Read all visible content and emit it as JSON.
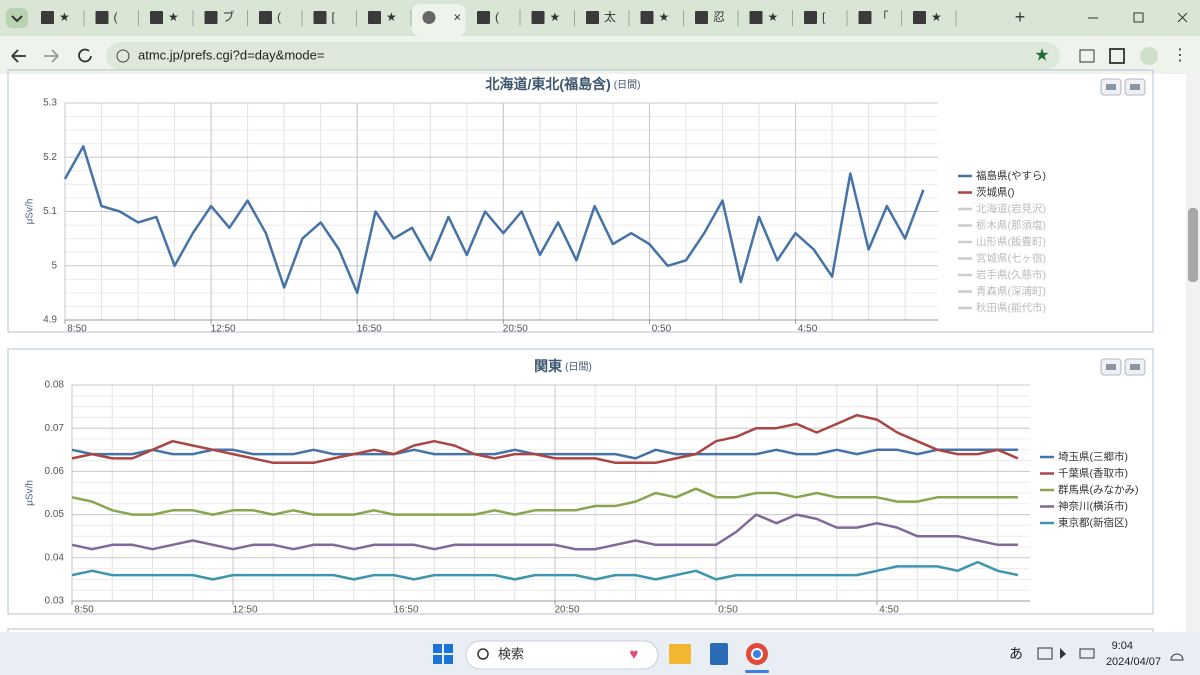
{
  "browser": {
    "tabs": [
      "★",
      "(",
      "★",
      "ブ",
      "(",
      "[",
      "★",
      "",
      "(",
      "★",
      "太",
      "★",
      "忍",
      "★",
      "[",
      "「",
      "★"
    ],
    "active_tab": 7,
    "url": "atmc.jp/prefs.cgi?d=day&mode="
  },
  "chart_data": [
    {
      "type": "line",
      "title": "北海道/東北(福島含)",
      "subtitle": "(日間)",
      "y_label": "μSv/h",
      "x": [
        0,
        0.5,
        1,
        1.5,
        2,
        2.5,
        3,
        3.5,
        4,
        4.5,
        5,
        5.5,
        6,
        6.5,
        7,
        7.5,
        8,
        8.5,
        9,
        9.5,
        10,
        10.5,
        11,
        11.5,
        12,
        12.5,
        13,
        13.5,
        14,
        14.5,
        15,
        15.5,
        16,
        16.5,
        17,
        17.5,
        18,
        18.5,
        19,
        19.5,
        20,
        20.5,
        21,
        21.5,
        22,
        22.5,
        23,
        23.5
      ],
      "xlim": [
        0,
        23.9
      ],
      "xticks": [
        {
          "value": 0,
          "label": "8:50"
        },
        {
          "value": 4,
          "label": "12:50"
        },
        {
          "value": 8,
          "label": "16:50"
        },
        {
          "value": 12,
          "label": "20:50"
        },
        {
          "value": 16,
          "label": "0:50"
        },
        {
          "value": 20,
          "label": "4:50"
        }
      ],
      "ylim": [
        4.9,
        5.3
      ],
      "yticks": [
        4.9,
        5,
        5.1,
        5.2,
        5.3
      ],
      "grid": true,
      "series": [
        {
          "name": "福島県(やすら)",
          "color": "#4572a7",
          "values": [
            5.16,
            5.22,
            5.11,
            5.1,
            5.08,
            5.09,
            5.0,
            5.06,
            5.11,
            5.07,
            5.12,
            5.06,
            4.96,
            5.05,
            5.08,
            5.03,
            4.95,
            5.1,
            5.05,
            5.07,
            5.01,
            5.09,
            5.02,
            5.1,
            5.06,
            5.1,
            5.02,
            5.08,
            5.01,
            5.11,
            5.04,
            5.06,
            5.04,
            5.0,
            5.01,
            5.06,
            5.12,
            4.97,
            5.09,
            5.01,
            5.06,
            5.03,
            4.98,
            5.17,
            5.03,
            5.11,
            5.05,
            5.14
          ]
        },
        {
          "name": "茨城県()",
          "color": "#aa4643",
          "values": [
            null,
            null,
            null,
            null,
            null,
            null,
            null,
            null,
            null,
            null,
            null,
            null,
            null,
            null,
            null,
            null,
            null,
            null,
            null,
            null,
            null,
            null,
            null,
            null,
            null,
            null,
            null,
            null,
            null,
            null,
            null,
            null,
            null,
            null,
            null,
            null,
            null,
            null,
            null,
            null,
            null,
            null,
            null,
            null,
            null,
            null,
            null,
            null
          ]
        }
      ],
      "inactive_legend": [
        "北海道(岩見沢)",
        "栃木県(那須塩)",
        "山形県(飯豊町)",
        "宮城県(七ヶ宿)",
        "岩手県(久慈市)",
        "青森県(深浦町)",
        "秋田県(能代市)"
      ]
    },
    {
      "type": "line",
      "title": "関東",
      "subtitle": "(日間)",
      "y_label": "μSv/h",
      "x": [
        0,
        0.5,
        1,
        1.5,
        2,
        2.5,
        3,
        3.5,
        4,
        4.5,
        5,
        5.5,
        6,
        6.5,
        7,
        7.5,
        8,
        8.5,
        9,
        9.5,
        10,
        10.5,
        11,
        11.5,
        12,
        12.5,
        13,
        13.5,
        14,
        14.5,
        15,
        15.5,
        16,
        16.5,
        17,
        17.5,
        18,
        18.5,
        19,
        19.5,
        20,
        20.5,
        21,
        21.5,
        22,
        22.5,
        23,
        23.5
      ],
      "xlim": [
        0,
        23.8
      ],
      "xticks": [
        {
          "value": 0,
          "label": "8:50"
        },
        {
          "value": 4,
          "label": "12:50"
        },
        {
          "value": 8,
          "label": "16:50"
        },
        {
          "value": 12,
          "label": "20:50"
        },
        {
          "value": 16,
          "label": "0:50"
        },
        {
          "value": 20,
          "label": "4:50"
        }
      ],
      "ylim": [
        0.03,
        0.08
      ],
      "yticks": [
        0.03,
        0.04,
        0.05,
        0.06,
        0.07,
        0.08
      ],
      "grid": true,
      "series": [
        {
          "name": "埼玉県(三郷市)",
          "color": "#4572a7",
          "values": [
            0.065,
            0.064,
            0.064,
            0.064,
            0.065,
            0.064,
            0.064,
            0.065,
            0.065,
            0.064,
            0.064,
            0.064,
            0.065,
            0.064,
            0.064,
            0.064,
            0.064,
            0.065,
            0.064,
            0.064,
            0.064,
            0.064,
            0.065,
            0.064,
            0.064,
            0.064,
            0.064,
            0.064,
            0.063,
            0.065,
            0.064,
            0.064,
            0.064,
            0.064,
            0.064,
            0.065,
            0.064,
            0.064,
            0.065,
            0.064,
            0.065,
            0.065,
            0.064,
            0.065,
            0.065,
            0.065,
            0.065,
            0.065
          ]
        },
        {
          "name": "千葉県(香取市)",
          "color": "#aa4643",
          "values": [
            0.063,
            0.064,
            0.063,
            0.063,
            0.065,
            0.067,
            0.066,
            0.065,
            0.064,
            0.063,
            0.062,
            0.062,
            0.062,
            0.063,
            0.064,
            0.065,
            0.064,
            0.066,
            0.067,
            0.066,
            0.064,
            0.063,
            0.064,
            0.064,
            0.063,
            0.063,
            0.063,
            0.062,
            0.062,
            0.062,
            0.063,
            0.064,
            0.067,
            0.068,
            0.07,
            0.07,
            0.071,
            0.069,
            0.071,
            0.073,
            0.072,
            0.069,
            0.067,
            0.065,
            0.064,
            0.064,
            0.065,
            0.063
          ]
        },
        {
          "name": "群馬県(みなかみ)",
          "color": "#89a54e",
          "values": [
            0.054,
            0.053,
            0.051,
            0.05,
            0.05,
            0.051,
            0.051,
            0.05,
            0.051,
            0.051,
            0.05,
            0.051,
            0.05,
            0.05,
            0.05,
            0.051,
            0.05,
            0.05,
            0.05,
            0.05,
            0.05,
            0.051,
            0.05,
            0.051,
            0.051,
            0.051,
            0.052,
            0.052,
            0.053,
            0.055,
            0.054,
            0.056,
            0.054,
            0.054,
            0.055,
            0.055,
            0.054,
            0.055,
            0.054,
            0.054,
            0.054,
            0.053,
            0.053,
            0.054,
            0.054,
            0.054,
            0.054,
            0.054
          ]
        },
        {
          "name": "神奈川(横浜市)",
          "color": "#80699b",
          "values": [
            0.043,
            0.042,
            0.043,
            0.043,
            0.042,
            0.043,
            0.044,
            0.043,
            0.042,
            0.043,
            0.043,
            0.042,
            0.043,
            0.043,
            0.042,
            0.043,
            0.043,
            0.043,
            0.042,
            0.043,
            0.043,
            0.043,
            0.043,
            0.043,
            0.043,
            0.042,
            0.042,
            0.043,
            0.044,
            0.043,
            0.043,
            0.043,
            0.043,
            0.046,
            0.05,
            0.048,
            0.05,
            0.049,
            0.047,
            0.047,
            0.048,
            0.047,
            0.045,
            0.045,
            0.045,
            0.044,
            0.043,
            0.043
          ]
        },
        {
          "name": "東京都(新宿区)",
          "color": "#3d96ae",
          "values": [
            0.036,
            0.037,
            0.036,
            0.036,
            0.036,
            0.036,
            0.036,
            0.035,
            0.036,
            0.036,
            0.036,
            0.036,
            0.036,
            0.036,
            0.035,
            0.036,
            0.036,
            0.035,
            0.036,
            0.036,
            0.036,
            0.036,
            0.035,
            0.036,
            0.036,
            0.036,
            0.035,
            0.036,
            0.036,
            0.035,
            0.036,
            0.037,
            0.035,
            0.036,
            0.036,
            0.036,
            0.036,
            0.036,
            0.036,
            0.036,
            0.037,
            0.038,
            0.038,
            0.038,
            0.037,
            0.039,
            0.037,
            0.036
          ]
        }
      ]
    }
  ],
  "taskbar": {
    "search": "検索",
    "ime": "あ",
    "time": "9:04",
    "date": "2024/04/07"
  }
}
